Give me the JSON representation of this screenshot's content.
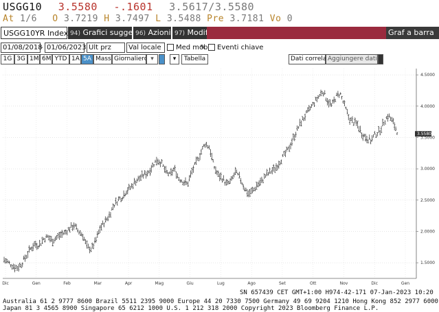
{
  "quote": {
    "ticker": "USGG10",
    "last": "3.5580",
    "change": "-.1601",
    "bid_ask": "3.5617/3.5580",
    "at_label": "At",
    "at_value": "1/6",
    "open_label": "O",
    "open": "3.7219",
    "high_label": "H",
    "high": "3.7497",
    "low_label": "L",
    "low": "3.5488",
    "prev_label": "Pre",
    "prev": "3.7181",
    "vol_label": "Vo",
    "vol": "0"
  },
  "toolbar": {
    "ticker_input": "USGG10YR Index",
    "sugg_num": "94)",
    "sugg_label": "Grafici suggeriti",
    "azioni_num": "96)",
    "azioni_label": "Azioni",
    "modif_num": "97)",
    "modif_label": "Modif",
    "graf_label": "Graf a barra"
  },
  "settings": {
    "date_from": "01/08/2018",
    "date_to": "01/06/2023",
    "field": "Ult prz",
    "currency": "Val locale",
    "med_mob": "Med mob",
    "eventi": "Eventi chiave"
  },
  "periods": {
    "items": [
      "1G",
      "3G",
      "1M",
      "6M",
      "YTD",
      "1A",
      "5A",
      "Mass"
    ],
    "selected": "5A",
    "freq": "Giornaliero",
    "tabella": "Tabella",
    "dati_correla": "Dati correla",
    "aggiungere": "Aggiungere dati"
  },
  "chart_data": {
    "type": "bar",
    "style": "ohlc",
    "title": "",
    "xlabel": "",
    "ylabel": "",
    "ylim": [
      1.25,
      4.6
    ],
    "yticks": [
      "4.5000",
      "4.0000",
      "3.5000",
      "3.0000",
      "2.5000",
      "2.0000",
      "1.5000"
    ],
    "ytick_values": [
      4.5,
      4.0,
      3.5,
      3.0,
      2.5,
      2.0,
      1.5
    ],
    "xticks": [
      "Dic",
      "Gen",
      "Feb",
      "Mar",
      "Apr",
      "Mag",
      "Giu",
      "Lug",
      "Ago",
      "Set",
      "Ott",
      "Nov",
      "Dic",
      "Gen"
    ],
    "last_value_label": "3.5580",
    "last_value": 3.558,
    "series": [
      {
        "values": [
          1.55,
          1.5,
          1.45,
          1.42,
          1.48,
          1.6,
          1.72,
          1.8,
          1.78,
          1.88,
          1.92,
          1.85,
          1.9,
          1.95,
          1.98,
          2.05,
          2.1,
          2.0,
          1.95,
          1.75,
          1.72,
          1.85,
          2.05,
          2.15,
          2.25,
          2.4,
          2.5,
          2.55,
          2.65,
          2.7,
          2.8,
          2.85,
          2.9,
          2.95,
          3.05,
          3.15,
          3.1,
          2.95,
          2.9,
          3.0,
          2.85,
          2.8,
          2.75,
          2.95,
          3.1,
          3.25,
          3.4,
          3.35,
          3.05,
          2.9,
          2.85,
          2.75,
          2.8,
          2.95,
          2.85,
          2.7,
          2.6,
          2.65,
          2.75,
          2.8,
          2.9,
          2.95,
          3.0,
          3.1,
          3.2,
          3.3,
          3.45,
          3.6,
          3.75,
          3.85,
          3.95,
          4.05,
          4.15,
          4.25,
          4.1,
          4.0,
          4.15,
          4.2,
          4.0,
          3.8,
          3.75,
          3.7,
          3.55,
          3.5,
          3.45,
          3.55,
          3.6,
          3.75,
          3.85,
          3.75,
          3.6
        ]
      }
    ]
  },
  "footer": {
    "line1": "SN 657439 CET  GMT+1:00 H974-42-171 07-Jan-2023 10:20",
    "line2": "Australia 61 2 9777 8600 Brazil 5511 2395 9000 Europe 44 20 7330 7500 Germany 49 69 9204 1210 Hong Kong 852 2977 6000",
    "line3": "Japan 81 3 4565 8900         Singapore 65 6212 1000          U.S. 1 212 318 2000          Copyright 2023 Bloomberg Finance L.P."
  }
}
